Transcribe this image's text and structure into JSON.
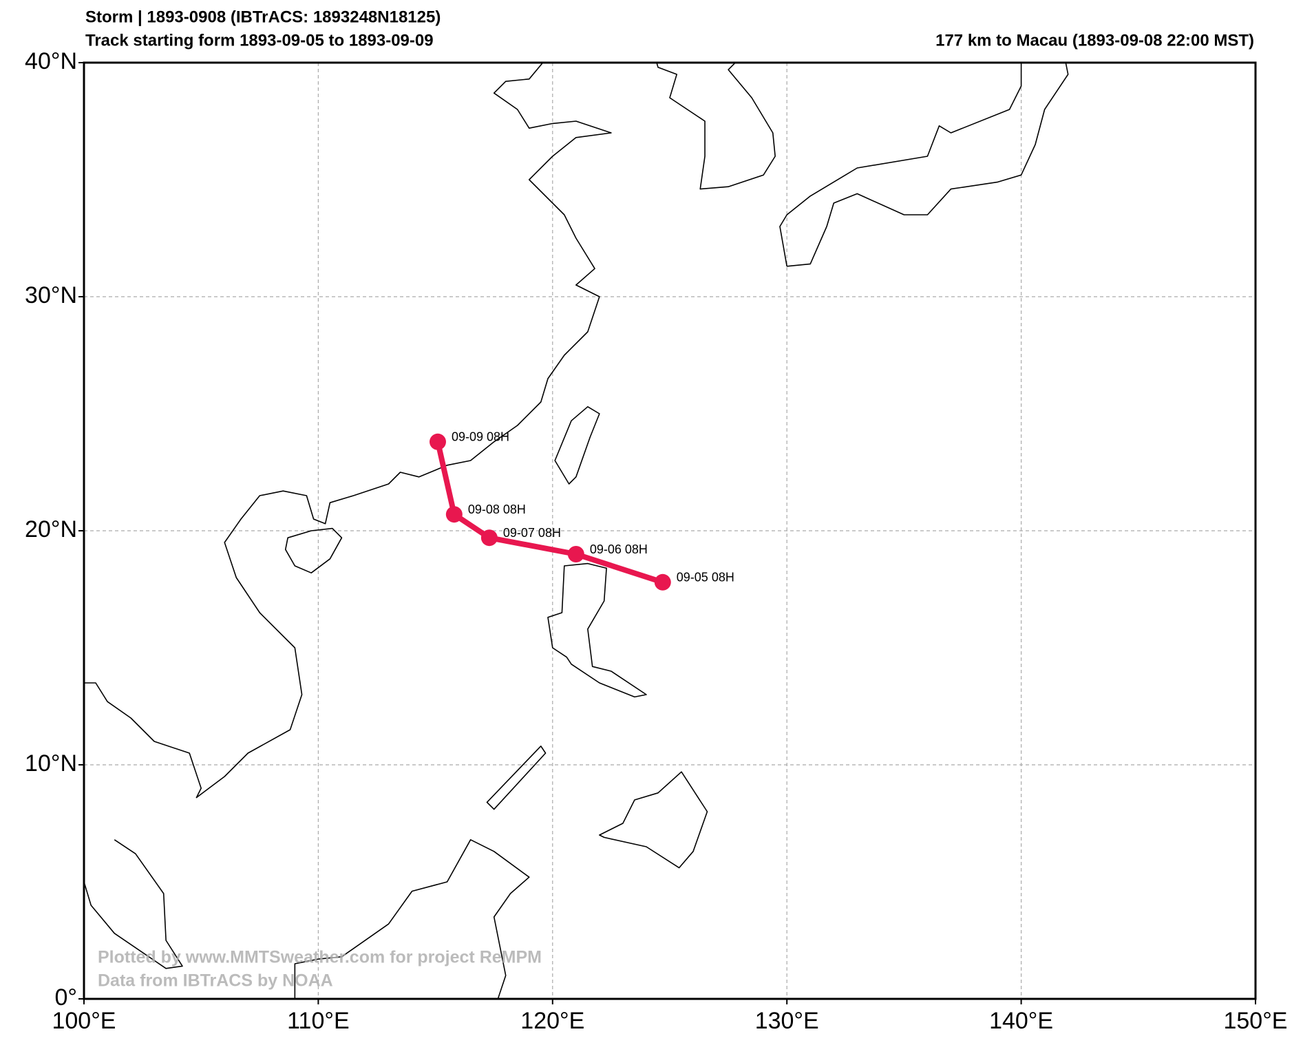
{
  "chart_data": {
    "type": "track-map",
    "title": "Storm | 1893-0908 (IBTrACS: 1893248N18125)",
    "subtitle": "Track starting form 1893-09-05 to 1893-09-09",
    "annotation": "177 km to Macau (1893-09-08 22:00 MST)",
    "credits": [
      "Plotted by www.MMTSweather.com for project ReMPM",
      "Data from IBTrACS by NOAA"
    ],
    "x": [
      124.7,
      121.0,
      117.3,
      115.8,
      115.1
    ],
    "values": [
      17.8,
      19.0,
      19.7,
      20.7,
      23.8
    ],
    "point_labels": [
      "09-05 08H",
      "09-06 08H",
      "09-07 08H",
      "09-08 08H",
      "09-09 08H"
    ],
    "color": "#e8174f",
    "xlim": [
      100,
      150
    ],
    "ylim": [
      0,
      40
    ],
    "xticks": [
      {
        "value": 100,
        "label": "100°E"
      },
      {
        "value": 110,
        "label": "110°E"
      },
      {
        "value": 120,
        "label": "120°E"
      },
      {
        "value": 130,
        "label": "130°E"
      },
      {
        "value": 140,
        "label": "140°E"
      },
      {
        "value": 150,
        "label": "150°E"
      }
    ],
    "yticks": [
      {
        "value": 0,
        "label": "0°"
      },
      {
        "value": 10,
        "label": "10°N"
      },
      {
        "value": 20,
        "label": "20°N"
      },
      {
        "value": 30,
        "label": "30°N"
      },
      {
        "value": 40,
        "label": "40°N"
      }
    ],
    "grid": true
  }
}
